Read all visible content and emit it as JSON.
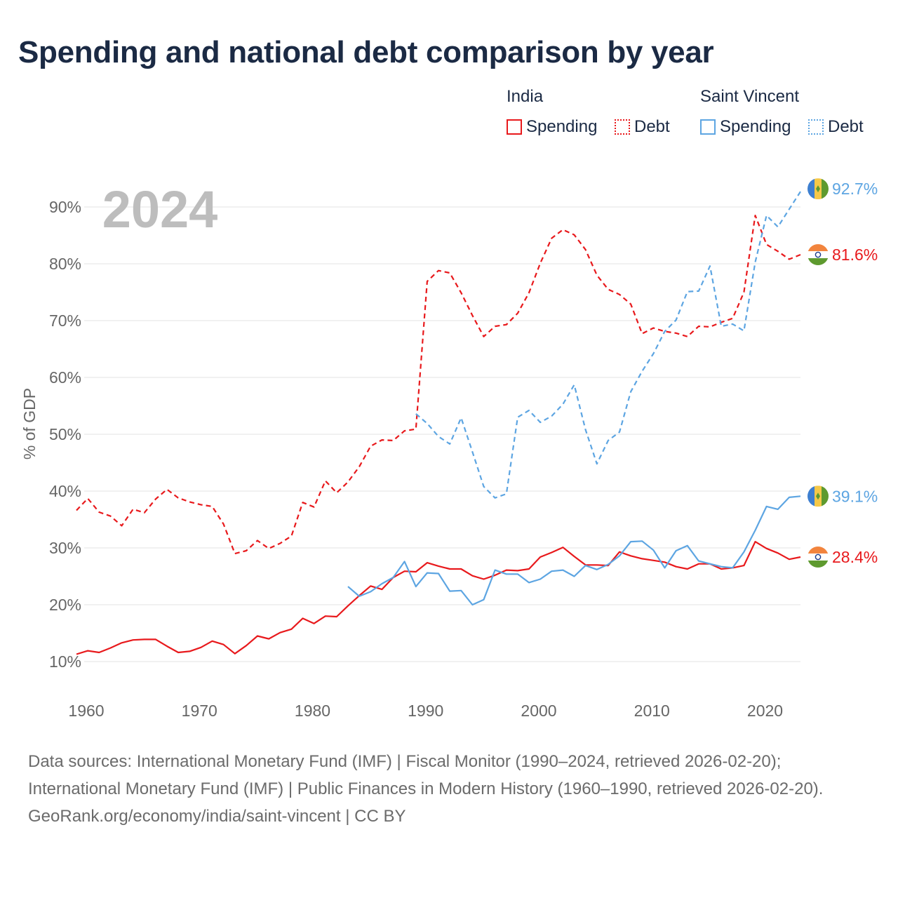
{
  "title": "Spending and national debt comparison by year",
  "year_label": "2024",
  "legend": {
    "groups": [
      {
        "name": "India",
        "color": "#e8191c",
        "items": [
          {
            "label": "Spending",
            "style": "solid"
          },
          {
            "label": "Debt",
            "style": "dotted"
          }
        ]
      },
      {
        "name": "Saint Vincent",
        "color": "#5da5e2",
        "items": [
          {
            "label": "Spending",
            "style": "solid"
          },
          {
            "label": "Debt",
            "style": "dotted"
          }
        ]
      }
    ]
  },
  "footer": {
    "sources": "Data sources: International Monetary Fund (IMF) | Fiscal Monitor (1990–2024, retrieved 2026-02-20); International Monetary Fund (IMF) | Public Finances in Modern History (1960–1990, retrieved 2026-02-20).",
    "credit": "GeoRank.org/economy/india/saint-vincent | CC BY"
  },
  "chart_data": {
    "type": "line",
    "title": "Spending and national debt comparison by year",
    "xlabel": "",
    "ylabel": "% of GDP",
    "xlim": [
      1960,
      2024
    ],
    "ylim": [
      8,
      95
    ],
    "x_ticks": [
      1960,
      1970,
      1980,
      1990,
      2000,
      2010,
      2020
    ],
    "y_ticks": [
      10,
      20,
      30,
      40,
      50,
      60,
      70,
      80,
      90
    ],
    "y_tick_labels": [
      "10%",
      "20%",
      "30%",
      "40%",
      "50%",
      "60%",
      "70%",
      "80%",
      "90%"
    ],
    "grid": true,
    "series": [
      {
        "name": "India Spending",
        "country": "India",
        "color": "#e8191c",
        "dash": "solid",
        "end_label": "28.4%",
        "flag": "india",
        "start_year": 1960,
        "values": [
          11.3,
          11.9,
          11.6,
          12.4,
          13.3,
          13.8,
          13.9,
          13.9,
          12.7,
          11.6,
          11.8,
          12.5,
          13.6,
          13.0,
          11.4,
          12.8,
          14.5,
          14.0,
          15.1,
          15.7,
          17.6,
          16.7,
          18.0,
          17.9,
          19.8,
          21.6,
          23.3,
          22.7,
          24.8,
          25.9,
          25.8,
          27.4,
          26.8,
          26.3,
          26.3,
          25.1,
          24.5,
          25.2,
          26.1,
          26.0,
          26.3,
          28.4,
          29.2,
          30.1,
          28.5,
          27.0,
          27.0,
          26.9,
          29.3,
          28.6,
          28.1,
          27.8,
          27.5,
          26.7,
          26.3,
          27.2,
          27.2,
          26.3,
          26.5,
          26.9,
          31.1,
          29.9,
          29.1,
          28.0,
          28.4
        ]
      },
      {
        "name": "India Debt",
        "country": "India",
        "color": "#e8191c",
        "dash": "dashed",
        "end_label": "81.6%",
        "flag": "india",
        "start_year": 1960,
        "values": [
          36.6,
          38.7,
          36.3,
          35.6,
          33.9,
          36.8,
          36.2,
          38.6,
          40.3,
          38.8,
          38.1,
          37.6,
          37.3,
          34.2,
          29.0,
          29.5,
          31.3,
          29.9,
          30.8,
          32.1,
          38.0,
          37.2,
          41.8,
          39.7,
          41.6,
          44.3,
          47.9,
          49.0,
          48.9,
          50.6,
          50.9,
          76.9,
          78.8,
          78.4,
          74.9,
          70.9,
          67.2,
          69.0,
          69.3,
          71.3,
          74.9,
          80.1,
          84.5,
          86.0,
          85.1,
          82.5,
          78.0,
          75.5,
          74.6,
          72.9,
          67.7,
          68.7,
          68.1,
          67.8,
          67.2,
          69.0,
          68.9,
          69.7,
          70.4,
          75.0,
          88.5,
          83.4,
          82.2,
          80.8,
          81.6
        ]
      },
      {
        "name": "Saint Vincent Spending",
        "country": "Saint Vincent",
        "color": "#5da5e2",
        "dash": "solid",
        "end_label": "39.1%",
        "flag": "saint-vincent",
        "start_year": 1984,
        "values": [
          23.2,
          21.5,
          22.3,
          23.7,
          24.8,
          27.6,
          23.2,
          25.6,
          25.5,
          22.4,
          22.5,
          20.0,
          20.9,
          26.1,
          25.4,
          25.4,
          23.9,
          24.5,
          25.9,
          26.1,
          25.0,
          26.9,
          26.2,
          27.1,
          28.6,
          31.1,
          31.2,
          29.6,
          26.5,
          29.5,
          30.4,
          27.7,
          27.2,
          26.7,
          26.5,
          29.3,
          33.1,
          37.3,
          36.8,
          38.9,
          39.1
        ]
      },
      {
        "name": "Saint Vincent Debt",
        "country": "Saint Vincent",
        "color": "#5da5e2",
        "dash": "dashed",
        "end_label": "92.7%",
        "flag": "saint-vincent",
        "start_year": 1990,
        "values": [
          53.6,
          51.9,
          49.6,
          48.3,
          52.9,
          46.9,
          40.8,
          38.8,
          39.5,
          53.0,
          54.2,
          52.1,
          53.2,
          55.3,
          58.7,
          50.8,
          44.8,
          48.9,
          50.4,
          57.5,
          61.1,
          64.2,
          68.1,
          70.1,
          75.1,
          75.2,
          79.6,
          69.0,
          69.4,
          68.2,
          80.3,
          88.5,
          86.5,
          89.6,
          92.7
        ]
      }
    ]
  }
}
